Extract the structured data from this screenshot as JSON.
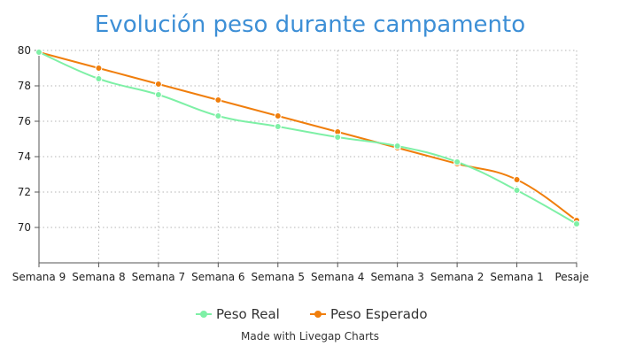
{
  "chart_data": {
    "type": "line",
    "title": "Evolución peso durante campamento",
    "categories": [
      "Semana 9",
      "Semana 8",
      "Semana 7",
      "Semana 6",
      "Semana 5",
      "Semana 4",
      "Semana 3",
      "Semana 2",
      "Semana 1",
      "Pesaje"
    ],
    "series": [
      {
        "name": "Peso Real",
        "color": "#7ef0a6",
        "values": [
          79.9,
          78.4,
          77.5,
          76.3,
          75.7,
          75.1,
          74.6,
          73.7,
          72.1,
          70.2
        ]
      },
      {
        "name": "Peso Esperado",
        "color": "#f07e0c",
        "values": [
          79.9,
          79.0,
          78.1,
          77.2,
          76.3,
          75.4,
          74.5,
          73.6,
          72.7,
          70.4
        ]
      }
    ],
    "y_ticks": [
      70,
      72,
      74,
      76,
      78,
      80
    ],
    "ylim": [
      68,
      80
    ],
    "grid": true,
    "legend_position": "bottom",
    "footer": "Made with Livegap Charts"
  }
}
